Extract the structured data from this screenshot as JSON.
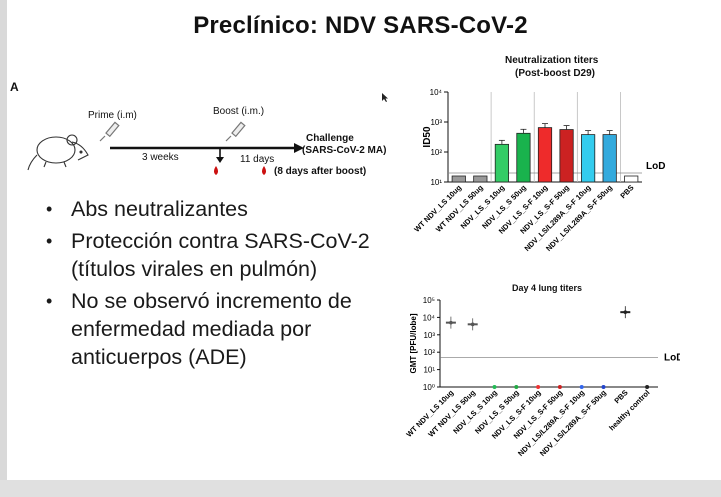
{
  "title": "Preclínico: NDV SARS-CoV-2",
  "panel_label": "A",
  "timeline": {
    "prime": "Prime (i.m)",
    "boost": "Boost (i.m.)",
    "weeks": "3 weeks",
    "days": "11 days",
    "challenge_line1": "Challenge",
    "challenge_line2": "(SARS-CoV-2 MA)",
    "after_boost": "(8 days after boost)"
  },
  "bullets": [
    "Abs neutralizantes",
    "Protección contra SARS-CoV-2 (títulos virales en pulmón)",
    "No se observó incremento de enfermedad mediada por anticuerpos (ADE)"
  ],
  "chart_data": [
    {
      "type": "bar",
      "title": "Neutralization titers",
      "subtitle": "(Post-boost D29)",
      "ylabel": "ID50",
      "yscale": "log",
      "ylim": [
        10,
        10000
      ],
      "yticks": [
        "10¹",
        "10²",
        "10³",
        "10⁴"
      ],
      "lod_label": "LoD",
      "lod_value": 20,
      "categories": [
        "WT NDV_LS 10ug",
        "WT NDV_LS 50ug",
        "NDV_LS_S 10ug",
        "NDV_LS_S 50ug",
        "NDV_LS_S-F 10ug",
        "NDV_LS_S-F 50ug",
        "NDV_LS/L289A_S-F 10ug",
        "NDV_LS/L289A_S-F 50ug",
        "PBS"
      ],
      "values": [
        10,
        10,
        180,
        420,
        650,
        560,
        380,
        380,
        10
      ],
      "colors": [
        "#999999",
        "#999999",
        "#33cc66",
        "#19b34d",
        "#ee2b2b",
        "#cc2222",
        "#33ccee",
        "#33aadd",
        "#ffffff"
      ]
    },
    {
      "type": "scatter",
      "title": "Day 4 lung titers",
      "ylabel": "GMT [PFU/lobe]",
      "yscale": "log",
      "ylim": [
        1,
        100000
      ],
      "yticks": [
        "10⁰",
        "10¹",
        "10²",
        "10³",
        "10⁴",
        "10⁵"
      ],
      "lod_label": "LoD",
      "lod_value": 50,
      "categories": [
        "WT NDV_LS 10ug",
        "WT NDV_LS 50ug",
        "NDV_LS_S 10ug",
        "NDV_LS_S 50ug",
        "NDV_LS_S-F 10ug",
        "NDV_LS_S-F 50ug",
        "NDV_LS/L289A_S-F 10ug",
        "NDV_LS/L289A_S-F 50ug",
        "PBS",
        "healthy control"
      ],
      "values": [
        5000,
        4000,
        1,
        1,
        1,
        1,
        1,
        1,
        20000,
        1
      ],
      "colors": [
        "#555555",
        "#555555",
        "#22bb55",
        "#22aa44",
        "#ee3333",
        "#cc2222",
        "#3366ee",
        "#2244cc",
        "#222222",
        "#222222"
      ]
    }
  ]
}
